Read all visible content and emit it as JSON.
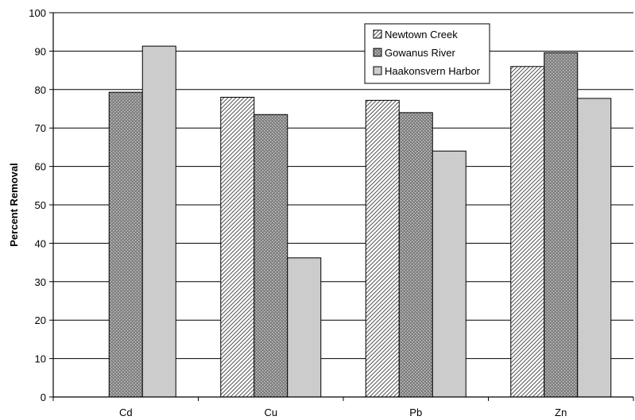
{
  "chart_data": {
    "type": "bar",
    "title": "",
    "xlabel": "",
    "ylabel": "Percent Removal",
    "ylim": [
      0,
      100
    ],
    "yticks": [
      0,
      10,
      20,
      30,
      40,
      50,
      60,
      70,
      80,
      90,
      100
    ],
    "grid": "horizontal",
    "legend_position": "top-right",
    "categories": [
      "Cd",
      "Cu",
      "Pb",
      "Zn"
    ],
    "series": [
      {
        "name": "Newtown Creek",
        "values": [
          null,
          78,
          77.2,
          86
        ],
        "fill": "diagonal-hatch"
      },
      {
        "name": "Gowanus River",
        "values": [
          79.3,
          73.5,
          74,
          89.6
        ],
        "fill": "dark-dots"
      },
      {
        "name": "Haakonsvern Harbor",
        "values": [
          91.3,
          36.2,
          64,
          77.7
        ],
        "fill": "light-gray"
      }
    ]
  },
  "colors": {
    "hatch_fg": "#555555",
    "dots_bg": "#8a8a8a",
    "light_fill": "#cccccc",
    "axis": "#000000"
  }
}
